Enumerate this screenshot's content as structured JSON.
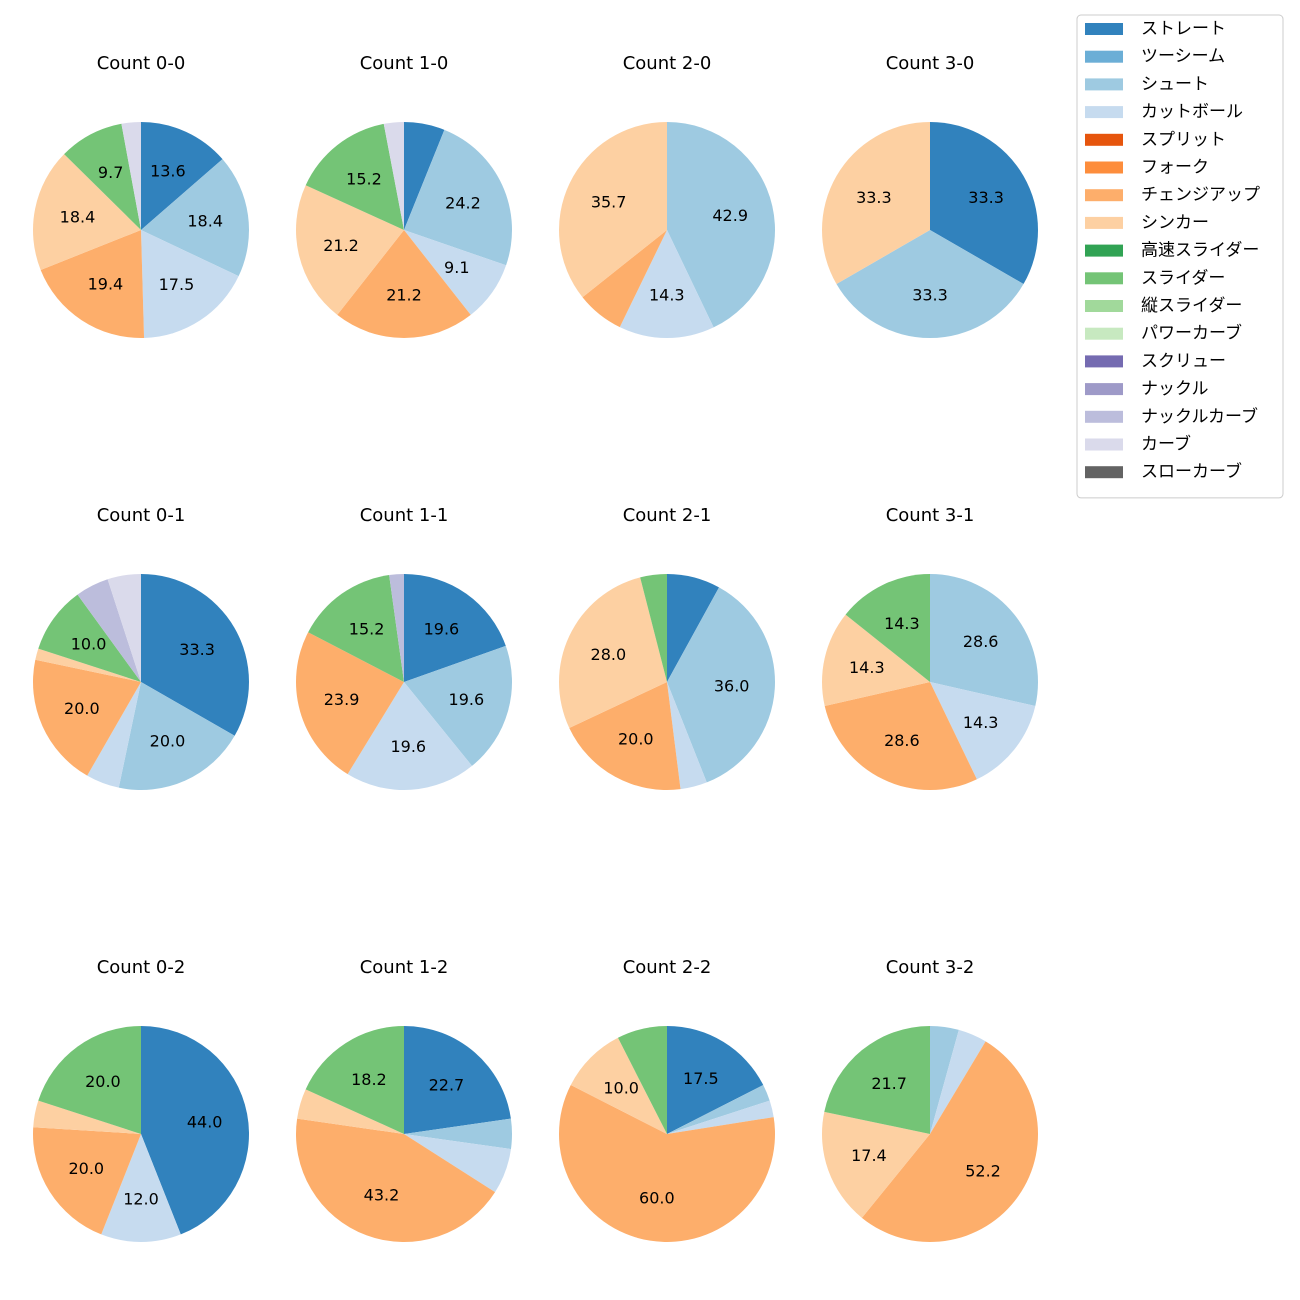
{
  "chart_data": {
    "type": "pie",
    "pitch_types": [
      {
        "name": "ストレート",
        "color": "#3182bd"
      },
      {
        "name": "ツーシーム",
        "color": "#6baed6"
      },
      {
        "name": "シュート",
        "color": "#9ecae1"
      },
      {
        "name": "カットボール",
        "color": "#c6dbef"
      },
      {
        "name": "スプリット",
        "color": "#e6550d"
      },
      {
        "name": "フォーク",
        "color": "#fd8d3c"
      },
      {
        "name": "チェンジアップ",
        "color": "#fdae6b"
      },
      {
        "name": "シンカー",
        "color": "#fdd0a2"
      },
      {
        "name": "高速スライダー",
        "color": "#31a354"
      },
      {
        "name": "スライダー",
        "color": "#74c476"
      },
      {
        "name": "縦スライダー",
        "color": "#a1d99b"
      },
      {
        "name": "パワーカーブ",
        "color": "#c7e9c0"
      },
      {
        "name": "スクリュー",
        "color": "#756bb1"
      },
      {
        "name": "ナックル",
        "color": "#9e9ac8"
      },
      {
        "name": "ナックルカーブ",
        "color": "#bcbddc"
      },
      {
        "name": "カーブ",
        "color": "#dadaeb"
      },
      {
        "name": "スローカーブ",
        "color": "#636363"
      }
    ],
    "charts": [
      {
        "title": "Count 0-0",
        "slices": [
          {
            "pitch": "ストレート",
            "value": 13.6,
            "label": "13.6"
          },
          {
            "pitch": "シュート",
            "value": 18.4,
            "label": "18.4"
          },
          {
            "pitch": "カットボール",
            "value": 17.5,
            "label": "17.5"
          },
          {
            "pitch": "チェンジアップ",
            "value": 19.4,
            "label": "19.4"
          },
          {
            "pitch": "シンカー",
            "value": 18.4,
            "label": "18.4"
          },
          {
            "pitch": "スライダー",
            "value": 9.7,
            "label": "9.7"
          },
          {
            "pitch": "カーブ",
            "value": 2.9,
            "label": ""
          }
        ]
      },
      {
        "title": "Count 1-0",
        "slices": [
          {
            "pitch": "ストレート",
            "value": 6.1,
            "label": ""
          },
          {
            "pitch": "シュート",
            "value": 24.2,
            "label": "24.2"
          },
          {
            "pitch": "カットボール",
            "value": 9.1,
            "label": "9.1"
          },
          {
            "pitch": "チェンジアップ",
            "value": 21.2,
            "label": "21.2"
          },
          {
            "pitch": "シンカー",
            "value": 21.2,
            "label": "21.2"
          },
          {
            "pitch": "スライダー",
            "value": 15.2,
            "label": "15.2"
          },
          {
            "pitch": "カーブ",
            "value": 3.0,
            "label": ""
          }
        ]
      },
      {
        "title": "Count 2-0",
        "slices": [
          {
            "pitch": "シュート",
            "value": 42.9,
            "label": "42.9"
          },
          {
            "pitch": "カットボール",
            "value": 14.3,
            "label": "14.3"
          },
          {
            "pitch": "チェンジアップ",
            "value": 7.1,
            "label": ""
          },
          {
            "pitch": "シンカー",
            "value": 35.7,
            "label": "35.7"
          }
        ]
      },
      {
        "title": "Count 3-0",
        "slices": [
          {
            "pitch": "ストレート",
            "value": 33.3,
            "label": "33.3"
          },
          {
            "pitch": "シュート",
            "value": 33.3,
            "label": "33.3"
          },
          {
            "pitch": "シンカー",
            "value": 33.3,
            "label": "33.3"
          }
        ]
      },
      {
        "title": "Count 0-1",
        "slices": [
          {
            "pitch": "ストレート",
            "value": 33.3,
            "label": "33.3"
          },
          {
            "pitch": "シュート",
            "value": 20.0,
            "label": "20.0"
          },
          {
            "pitch": "カットボール",
            "value": 5.0,
            "label": ""
          },
          {
            "pitch": "チェンジアップ",
            "value": 20.0,
            "label": "20.0"
          },
          {
            "pitch": "シンカー",
            "value": 1.7,
            "label": ""
          },
          {
            "pitch": "スライダー",
            "value": 10.0,
            "label": "10.0"
          },
          {
            "pitch": "ナックルカーブ",
            "value": 5.0,
            "label": ""
          },
          {
            "pitch": "カーブ",
            "value": 5.0,
            "label": ""
          }
        ]
      },
      {
        "title": "Count 1-1",
        "slices": [
          {
            "pitch": "ストレート",
            "value": 19.6,
            "label": "19.6"
          },
          {
            "pitch": "シュート",
            "value": 19.6,
            "label": "19.6"
          },
          {
            "pitch": "カットボール",
            "value": 19.6,
            "label": "19.6"
          },
          {
            "pitch": "チェンジアップ",
            "value": 23.9,
            "label": "23.9"
          },
          {
            "pitch": "スライダー",
            "value": 15.2,
            "label": "15.2"
          },
          {
            "pitch": "ナックルカーブ",
            "value": 2.2,
            "label": ""
          }
        ]
      },
      {
        "title": "Count 2-1",
        "slices": [
          {
            "pitch": "ストレート",
            "value": 8.0,
            "label": ""
          },
          {
            "pitch": "シュート",
            "value": 36.0,
            "label": "36.0"
          },
          {
            "pitch": "カットボール",
            "value": 4.0,
            "label": ""
          },
          {
            "pitch": "チェンジアップ",
            "value": 20.0,
            "label": "20.0"
          },
          {
            "pitch": "シンカー",
            "value": 28.0,
            "label": "28.0"
          },
          {
            "pitch": "スライダー",
            "value": 4.0,
            "label": ""
          }
        ]
      },
      {
        "title": "Count 3-1",
        "slices": [
          {
            "pitch": "シュート",
            "value": 28.6,
            "label": "28.6"
          },
          {
            "pitch": "カットボール",
            "value": 14.3,
            "label": "14.3"
          },
          {
            "pitch": "チェンジアップ",
            "value": 28.6,
            "label": "28.6"
          },
          {
            "pitch": "シンカー",
            "value": 14.3,
            "label": "14.3"
          },
          {
            "pitch": "スライダー",
            "value": 14.3,
            "label": "14.3"
          }
        ]
      },
      {
        "title": "Count 0-2",
        "slices": [
          {
            "pitch": "ストレート",
            "value": 44.0,
            "label": "44.0"
          },
          {
            "pitch": "カットボール",
            "value": 12.0,
            "label": "12.0"
          },
          {
            "pitch": "チェンジアップ",
            "value": 20.0,
            "label": "20.0"
          },
          {
            "pitch": "シンカー",
            "value": 4.0,
            "label": ""
          },
          {
            "pitch": "スライダー",
            "value": 20.0,
            "label": "20.0"
          }
        ]
      },
      {
        "title": "Count 1-2",
        "slices": [
          {
            "pitch": "ストレート",
            "value": 22.7,
            "label": "22.7"
          },
          {
            "pitch": "シュート",
            "value": 4.5,
            "label": ""
          },
          {
            "pitch": "カットボール",
            "value": 6.8,
            "label": ""
          },
          {
            "pitch": "チェンジアップ",
            "value": 43.2,
            "label": "43.2"
          },
          {
            "pitch": "シンカー",
            "value": 4.5,
            "label": ""
          },
          {
            "pitch": "スライダー",
            "value": 18.2,
            "label": "18.2"
          }
        ]
      },
      {
        "title": "Count 2-2",
        "slices": [
          {
            "pitch": "ストレート",
            "value": 17.5,
            "label": "17.5"
          },
          {
            "pitch": "シュート",
            "value": 2.5,
            "label": ""
          },
          {
            "pitch": "カットボール",
            "value": 2.5,
            "label": ""
          },
          {
            "pitch": "チェンジアップ",
            "value": 60.0,
            "label": "60.0"
          },
          {
            "pitch": "シンカー",
            "value": 10.0,
            "label": "10.0"
          },
          {
            "pitch": "スライダー",
            "value": 7.5,
            "label": ""
          }
        ]
      },
      {
        "title": "Count 3-2",
        "slices": [
          {
            "pitch": "シュート",
            "value": 4.3,
            "label": ""
          },
          {
            "pitch": "カットボール",
            "value": 4.3,
            "label": ""
          },
          {
            "pitch": "チェンジアップ",
            "value": 52.2,
            "label": "52.2"
          },
          {
            "pitch": "シンカー",
            "value": 17.4,
            "label": "17.4"
          },
          {
            "pitch": "スライダー",
            "value": 21.7,
            "label": "21.7"
          }
        ]
      }
    ]
  }
}
